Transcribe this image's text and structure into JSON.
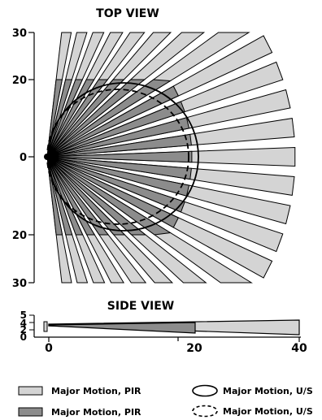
{
  "top_view": {
    "title": "TOP VIEW",
    "y_ticks": [
      "30",
      "20",
      "0",
      "20",
      "30"
    ]
  },
  "side_view": {
    "title": "SIDE VIEW",
    "y_ticks": [
      "5",
      "4",
      "2",
      "0"
    ],
    "x_ticks": [
      "0",
      "20",
      "40"
    ]
  },
  "legend": [
    {
      "label": "Major Motion, PIR",
      "swatch": "light-gray-fill",
      "color": "#d4d4d4"
    },
    {
      "label": "Major Motion, PIR",
      "swatch": "dark-gray-fill",
      "color": "#8c8c8c"
    },
    {
      "label": "Major Motion, U/S",
      "swatch": "solid-ellipse"
    },
    {
      "label": "Major Motion, U/S",
      "swatch": "dashed-ellipse"
    }
  ],
  "colors": {
    "light_zone": "#d4d4d4",
    "dark_zone": "#8c8c8c",
    "outline": "#000000"
  }
}
